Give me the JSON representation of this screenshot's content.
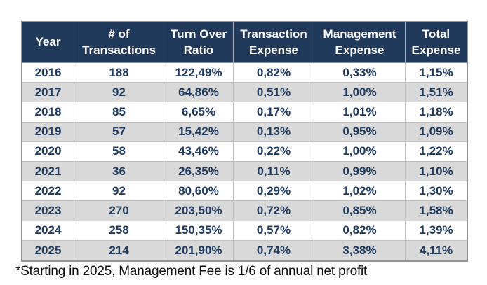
{
  "header": {
    "columns": [
      {
        "line1": "Year",
        "line2": ""
      },
      {
        "line1": "# of",
        "line2": "Transactions"
      },
      {
        "line1": "Turn Over",
        "line2": "Ratio"
      },
      {
        "line1": "Transaction",
        "line2": "Expense"
      },
      {
        "line1": "Management",
        "line2": "Expense"
      },
      {
        "line1": "Total",
        "line2": "Expense"
      }
    ]
  },
  "chart_data": {
    "type": "table",
    "columns": [
      "Year",
      "# of Transactions",
      "Turn Over Ratio",
      "Transaction Expense",
      "Management Expense",
      "Total Expense"
    ],
    "rows": [
      [
        "2016",
        "188",
        "122,49%",
        "0,82%",
        "0,33%",
        "1,15%"
      ],
      [
        "2017",
        "92",
        "64,86%",
        "0,51%",
        "1,00%",
        "1,51%"
      ],
      [
        "2018",
        "85",
        "6,65%",
        "0,17%",
        "1,01%",
        "1,18%"
      ],
      [
        "2019",
        "57",
        "15,42%",
        "0,13%",
        "0,95%",
        "1,09%"
      ],
      [
        "2020",
        "58",
        "43,46%",
        "0,22%",
        "1,00%",
        "1,22%"
      ],
      [
        "2021",
        "36",
        "26,35%",
        "0,11%",
        "0,99%",
        "1,10%"
      ],
      [
        "2022",
        "92",
        "80,60%",
        "0,29%",
        "1,02%",
        "1,30%"
      ],
      [
        "2023",
        "270",
        "203,50%",
        "0,72%",
        "0,85%",
        "1,58%"
      ],
      [
        "2024",
        "258",
        "150,35%",
        "0,57%",
        "0,82%",
        "1,39%"
      ],
      [
        "2025",
        "214",
        "201,90%",
        "0,74%",
        "3,38%",
        "4,11%"
      ]
    ],
    "footnote": "*Starting in 2025, Management Fee is 1/6 of annual net profit"
  },
  "colors": {
    "header_bg": "#21395B",
    "header_text": "#FFFFFF",
    "body_text": "#1F3A5F",
    "alt_row_bg": "#D9D9D9",
    "grid_border": "#BFBFBF",
    "outer_border": "#8F9499"
  }
}
